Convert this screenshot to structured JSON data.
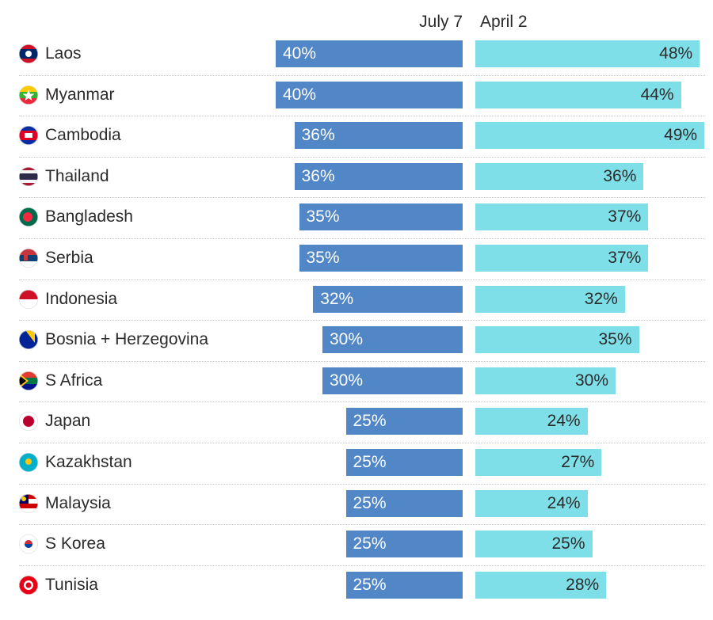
{
  "colors": {
    "july": "#5187c7",
    "april": "#7fdfe8"
  },
  "chart_data": {
    "type": "bar",
    "series": [
      {
        "name": "July 7",
        "values": [
          40,
          40,
          36,
          36,
          35,
          35,
          32,
          30,
          30,
          25,
          25,
          25,
          25,
          25
        ]
      },
      {
        "name": "April 2",
        "values": [
          48,
          44,
          49,
          36,
          37,
          37,
          32,
          35,
          30,
          24,
          27,
          24,
          25,
          28
        ]
      }
    ],
    "categories": [
      "Laos",
      "Myanmar",
      "Cambodia",
      "Thailand",
      "Bangladesh",
      "Serbia",
      "Indonesia",
      "Bosnia + Herzegovina",
      "S Africa",
      "Japan",
      "Kazakhstan",
      "Malaysia",
      "S Korea",
      "Tunisia"
    ],
    "unit": "%",
    "flags": [
      [
        "#ce1126",
        "#002868",
        "#002868",
        "#ce1126"
      ],
      [
        "#fecb00",
        "#34b233",
        "#ea2839"
      ],
      [
        "#032ea1",
        "#e00025",
        "#e00025",
        "#032ea1"
      ],
      [
        "#a51931",
        "#f4f5f8",
        "#2d2a4a",
        "#2d2a4a",
        "#f4f5f8",
        "#a51931"
      ],
      [
        "#006a4e"
      ],
      [
        "#c6363c",
        "#0c4076",
        "#ffffff"
      ],
      [
        "#ce1126",
        "#ffffff"
      ],
      [
        "#002395"
      ],
      [
        "#e03c31",
        "#007749",
        "#001489"
      ],
      [
        "#ffffff"
      ],
      [
        "#00afca"
      ],
      [
        "#cc0001",
        "#ffffff",
        "#cc0001",
        "#ffffff"
      ],
      [
        "#ffffff"
      ],
      [
        "#e70013"
      ]
    ]
  }
}
